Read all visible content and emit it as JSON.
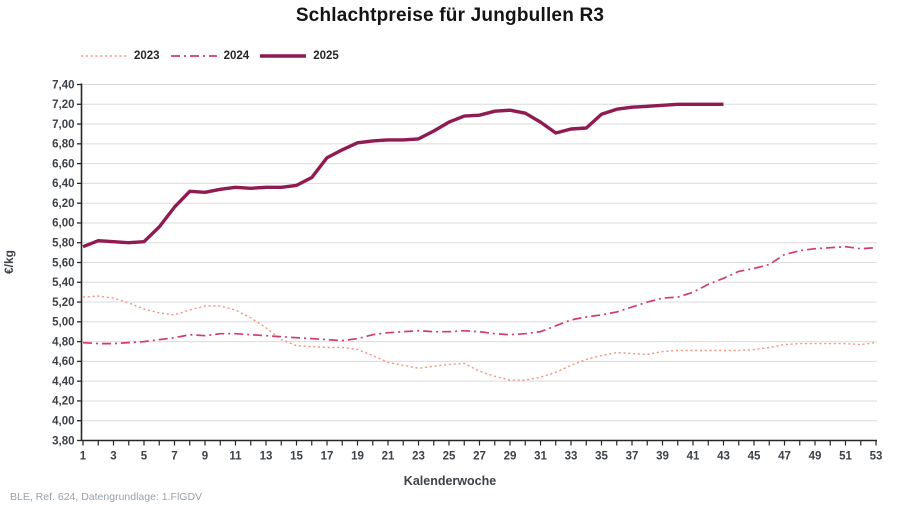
{
  "title": "Schlachtpreise für Jungbullen R3",
  "footer": "BLE, Ref. 624, Datengrundlage: 1.FlGDV",
  "chart_data": {
    "type": "line",
    "title": "Schlachtpreise für Jungbullen R3",
    "xlabel": "Kalenderwoche",
    "ylabel": "€/kg",
    "x_min": 1,
    "x_max": 53,
    "x_tick_step": 1,
    "x_label_ticks": [
      1,
      3,
      5,
      7,
      9,
      11,
      13,
      15,
      17,
      19,
      21,
      23,
      25,
      27,
      29,
      31,
      33,
      35,
      37,
      39,
      41,
      43,
      45,
      47,
      49,
      51,
      53
    ],
    "ylim": [
      3.8,
      7.4
    ],
    "y_tick_step": 0.2,
    "y_tick_labels": [
      "3,80",
      "4,00",
      "4,20",
      "4,40",
      "4,60",
      "4,80",
      "5,00",
      "5,20",
      "5,40",
      "5,60",
      "5,80",
      "6,00",
      "6,20",
      "6,40",
      "6,60",
      "6,80",
      "7,00",
      "7,20",
      "7,40"
    ],
    "decimal_separator": ",",
    "grid": "horizontal",
    "grid_color": "#dbdbdb",
    "axis_color": "#262626",
    "tick_label_color": "#3d4249",
    "legend_position": "top-left",
    "series": [
      {
        "name": "2023",
        "color": "#F2917D",
        "line_style": "dotted",
        "width": 1.4,
        "x_start": 1,
        "values": [
          5.25,
          5.26,
          5.24,
          5.19,
          5.13,
          5.09,
          5.07,
          5.12,
          5.16,
          5.16,
          5.12,
          5.04,
          4.94,
          4.82,
          4.76,
          4.75,
          4.74,
          4.74,
          4.72,
          4.66,
          4.59,
          4.56,
          4.53,
          4.55,
          4.57,
          4.58,
          4.5,
          4.45,
          4.41,
          4.41,
          4.44,
          4.49,
          4.56,
          4.62,
          4.66,
          4.69,
          4.68,
          4.67,
          4.7,
          4.71,
          4.71,
          4.71,
          4.71,
          4.71,
          4.72,
          4.74,
          4.77,
          4.78,
          4.78,
          4.78,
          4.78,
          4.77,
          4.79
        ]
      },
      {
        "name": "2024",
        "color": "#D23B6E",
        "line_style": "dash-dot",
        "width": 1.7,
        "x_start": 1,
        "values": [
          4.79,
          4.78,
          4.78,
          4.79,
          4.8,
          4.82,
          4.84,
          4.87,
          4.86,
          4.88,
          4.88,
          4.87,
          4.86,
          4.85,
          4.84,
          4.83,
          4.82,
          4.81,
          4.83,
          4.87,
          4.89,
          4.9,
          4.91,
          4.9,
          4.9,
          4.91,
          4.9,
          4.88,
          4.87,
          4.88,
          4.9,
          4.96,
          5.02,
          5.05,
          5.07,
          5.1,
          5.15,
          5.2,
          5.24,
          5.25,
          5.3,
          5.38,
          5.44,
          5.51,
          5.54,
          5.58,
          5.68,
          5.72,
          5.74,
          5.75,
          5.76,
          5.74,
          5.75
        ]
      },
      {
        "name": "2025",
        "color": "#901A52",
        "line_style": "solid",
        "width": 3.4,
        "x_start": 1,
        "values": [
          5.76,
          5.82,
          5.81,
          5.8,
          5.81,
          5.96,
          6.16,
          6.32,
          6.31,
          6.34,
          6.36,
          6.35,
          6.36,
          6.36,
          6.38,
          6.46,
          6.66,
          6.74,
          6.81,
          6.83,
          6.84,
          6.84,
          6.85,
          6.93,
          7.02,
          7.08,
          7.09,
          7.13,
          7.14,
          7.11,
          7.02,
          6.91,
          6.95,
          6.96,
          7.1,
          7.15,
          7.17,
          7.18,
          7.19,
          7.2,
          7.2,
          7.2,
          7.2
        ]
      }
    ]
  }
}
